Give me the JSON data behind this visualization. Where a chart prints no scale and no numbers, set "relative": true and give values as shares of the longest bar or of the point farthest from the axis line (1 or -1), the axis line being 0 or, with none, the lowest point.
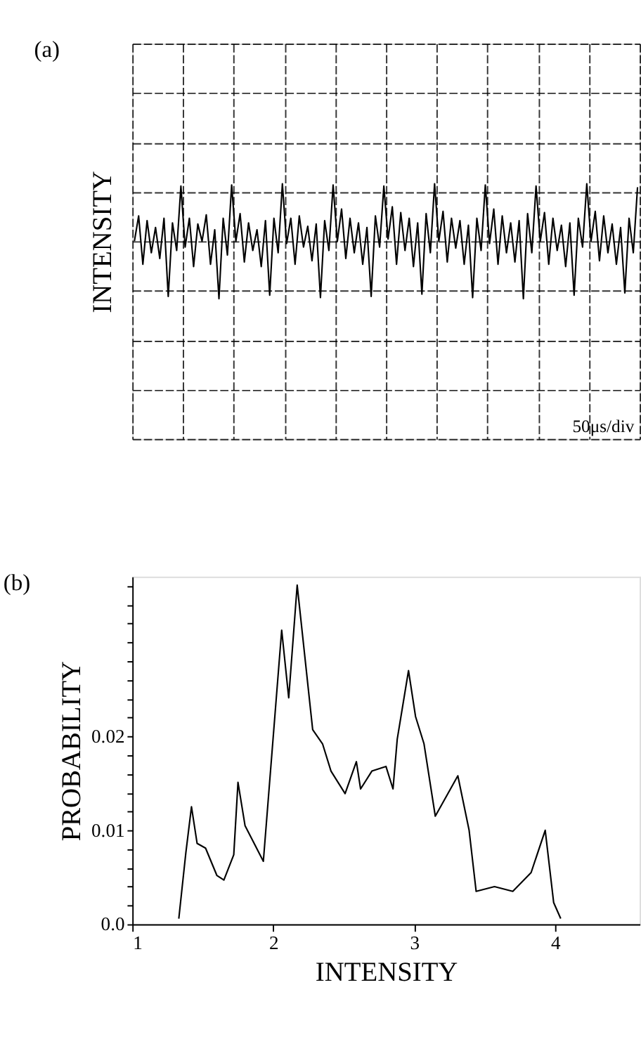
{
  "chart_data": [
    {
      "type": "line",
      "title": "(a)",
      "ylabel": "INTENSITY",
      "relative": true,
      "grid": true,
      "annotations": [
        "50μs/div"
      ],
      "categories": [
        null,
        null,
        null,
        null,
        null,
        null,
        null,
        null,
        null,
        null,
        null,
        null,
        null,
        null,
        null,
        null,
        null,
        null,
        null,
        null,
        null,
        null,
        null,
        null,
        null,
        null,
        null,
        null,
        null,
        null,
        null,
        null,
        null,
        null,
        null,
        null,
        null,
        null,
        null,
        null,
        null,
        null,
        null,
        null,
        null,
        null,
        null,
        null,
        null,
        null,
        null,
        null,
        null,
        null,
        null,
        null,
        null,
        null,
        null,
        null,
        null,
        null,
        null,
        null,
        null,
        null,
        null,
        null,
        null,
        null,
        null,
        null,
        null,
        null,
        null,
        null,
        null,
        null,
        null,
        null,
        null,
        null,
        null,
        null,
        null,
        null,
        null,
        null,
        null,
        null,
        null,
        null,
        null,
        null,
        null,
        null,
        null,
        null,
        null,
        null,
        null,
        null,
        null,
        null,
        null,
        null,
        null,
        null,
        null,
        null,
        null,
        null,
        null,
        null,
        null,
        null,
        null,
        null,
        null,
        null
      ],
      "series": [
        {
          "color": "#000000",
          "values": [
            0,
            0.44,
            -0.4,
            0.36,
            -0.2,
            0.24,
            -0.3,
            0.4,
            -0.96,
            0.32,
            -0.16,
            0.96,
            -0.1,
            0.4,
            -0.44,
            0.3,
            0,
            0.46,
            -0.4,
            0.2,
            -1,
            0.4,
            -0.24,
            0.98,
            0,
            0.48,
            -0.36,
            0.32,
            -0.16,
            0.2,
            -0.44,
            0.36,
            -0.94,
            0.4,
            -0.2,
            1,
            -0.04,
            0.4,
            -0.4,
            0.44,
            -0.1,
            0.26,
            -0.34,
            0.3,
            -0.98,
            0.36,
            -0.16,
            0.98,
            0,
            0.56,
            -0.3,
            0.4,
            -0.2,
            0.32,
            -0.4,
            0.24,
            -0.96,
            0.44,
            -0.1,
            0.96,
            0.04,
            0.6,
            -0.4,
            0.5,
            -0.16,
            0.4,
            -0.44,
            0.32,
            -0.92,
            0.48,
            -0.2,
            1,
            0,
            0.52,
            -0.36,
            0.4,
            -0.12,
            0.36,
            -0.4,
            0.28,
            -0.98,
            0.4,
            -0.16,
            0.98,
            -0.04,
            0.56,
            -0.4,
            0.44,
            -0.2,
            0.32,
            -0.36,
            0.36,
            -1,
            0.48,
            -0.2,
            0.96,
            0,
            0.5,
            -0.4,
            0.4,
            -0.16,
            0.28,
            -0.44,
            0.32,
            -0.94,
            0.4,
            -0.1,
            1,
            0,
            0.52,
            -0.34,
            0.44,
            -0.2,
            0.3,
            -0.4,
            0.24,
            -0.9,
            0.4,
            -0.2,
            0.94
          ]
        }
      ]
    },
    {
      "type": "line",
      "title": "(b)",
      "xlabel": "INTENSITY",
      "ylabel": "PROBABILITY",
      "xlim": [
        1,
        4.6
      ],
      "ylim": [
        0,
        0.037
      ],
      "xticks": [
        1,
        2,
        3,
        4
      ],
      "yticks": [
        {
          "value": 0,
          "label": "0.0"
        },
        {
          "value": 0.002,
          "label": null
        },
        {
          "value": 0.004,
          "label": null
        },
        {
          "value": 0.006,
          "label": null
        },
        {
          "value": 0.008,
          "label": null
        },
        0.01,
        {
          "value": 0.012,
          "label": null
        },
        {
          "value": 0.014,
          "label": null
        },
        {
          "value": 0.016,
          "label": null
        },
        {
          "value": 0.018,
          "label": null
        },
        0.02,
        {
          "value": 0.022,
          "label": null
        },
        {
          "value": 0.024,
          "label": null
        },
        {
          "value": 0.026,
          "label": null
        },
        {
          "value": 0.028,
          "label": null
        },
        {
          "value": 0.03,
          "label": null
        },
        {
          "value": 0.032,
          "label": null
        },
        {
          "value": 0.034,
          "label": null
        },
        {
          "value": 0.036,
          "label": null
        }
      ],
      "x": [
        1.33,
        1.38,
        1.42,
        1.46,
        1.52,
        1.6,
        1.65,
        1.72,
        1.75,
        1.8,
        1.93,
        2.06,
        2.11,
        2.17,
        2.28,
        2.35,
        2.41,
        2.51,
        2.59,
        2.62,
        2.7,
        2.8,
        2.85,
        2.88,
        2.96,
        3.01,
        3.07,
        3.15,
        3.31,
        3.39,
        3.44,
        3.57,
        3.7,
        3.83,
        3.93,
        3.99,
        4.04
      ],
      "series": [
        {
          "color": "#000000",
          "values": [
            0.0006,
            0.0076,
            0.0125,
            0.0086,
            0.0081,
            0.0052,
            0.0047,
            0.0074,
            0.0151,
            0.0105,
            0.0067,
            0.0313,
            0.0241,
            0.0361,
            0.0207,
            0.0192,
            0.0163,
            0.0139,
            0.0173,
            0.0144,
            0.0163,
            0.0168,
            0.0144,
            0.0197,
            0.027,
            0.0221,
            0.0192,
            0.0115,
            0.0158,
            0.01,
            0.0035,
            0.004,
            0.0035,
            0.0055,
            0.01,
            0.0023,
            0.0006
          ]
        }
      ]
    }
  ]
}
